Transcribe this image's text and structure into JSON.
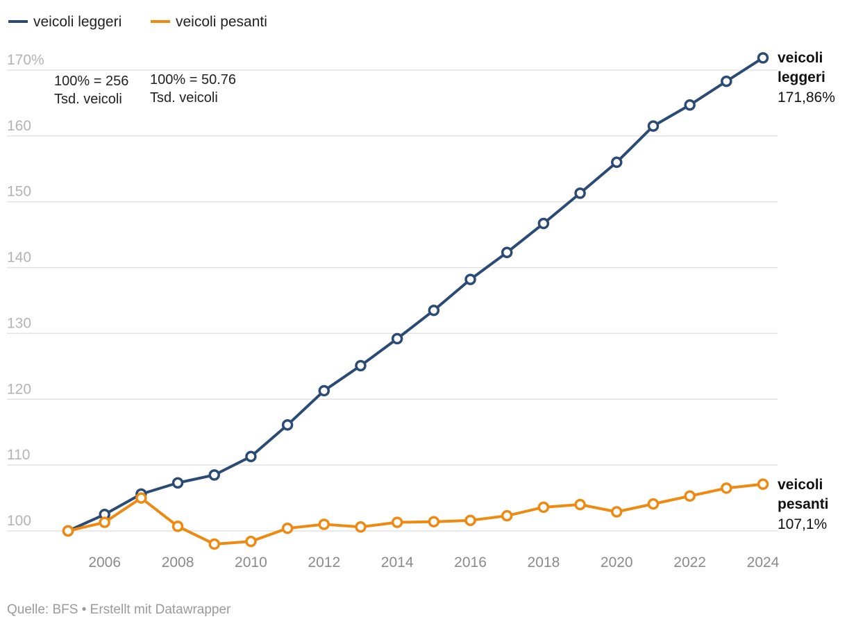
{
  "legend": [
    {
      "label": "veicoli leggeri",
      "color": "#2c4b74"
    },
    {
      "label": "veicoli pesanti",
      "color": "#ee8a12"
    }
  ],
  "chart_data": {
    "type": "line",
    "x": [
      2005,
      2006,
      2007,
      2008,
      2009,
      2010,
      2011,
      2012,
      2013,
      2014,
      2015,
      2016,
      2017,
      2018,
      2019,
      2020,
      2021,
      2022,
      2023,
      2024
    ],
    "x_tick_labels": [
      "2006",
      "2008",
      "2010",
      "2012",
      "2014",
      "2016",
      "2018",
      "2020",
      "2022",
      "2024"
    ],
    "y_tick_labels": [
      "100",
      "110",
      "120",
      "130",
      "140",
      "150",
      "160",
      "170%"
    ],
    "ylim": [
      98,
      172
    ],
    "series": [
      {
        "name": "veicoli leggeri",
        "color": "#2c4b74",
        "values": [
          100,
          102.5,
          105.6,
          107.3,
          108.5,
          111.3,
          116.1,
          121.3,
          125.1,
          129.2,
          133.5,
          138.2,
          142.3,
          146.7,
          151.3,
          156.0,
          161.5,
          164.7,
          168.3,
          171.86
        ],
        "end_label_name": "veicoli leggeri",
        "end_label_value": "171,86%"
      },
      {
        "name": "veicoli pesanti",
        "color": "#ee8a12",
        "values": [
          100,
          101.3,
          105.0,
          100.7,
          98.0,
          98.4,
          100.4,
          101.0,
          100.6,
          101.3,
          101.4,
          101.6,
          102.3,
          103.6,
          104.0,
          102.9,
          104.1,
          105.3,
          106.5,
          107.1
        ],
        "end_label_name": "veicoli pesanti",
        "end_label_value": "107,1%"
      }
    ],
    "annotations": [
      {
        "lines": [
          "100% = 256",
          "Tsd. veicoli"
        ]
      },
      {
        "lines": [
          "100% = 50.76",
          "Tsd. veicoli"
        ]
      }
    ],
    "grid": true
  },
  "footer": "Quelle: BFS • Erstellt mit Datawrapper"
}
